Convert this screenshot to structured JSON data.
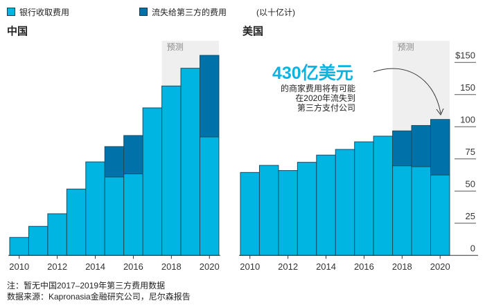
{
  "legend": {
    "bank": "银行收取费用",
    "lost": "流失给第三方的费用",
    "unit": "(以十亿计)"
  },
  "colors": {
    "bank": "#00b5e2",
    "lost": "#0072aa",
    "forecast_bg": "#efefef",
    "outline": "#1d4b5e"
  },
  "notes": [
    "注：暂无中国2017–2019年第三方费用数据",
    "数据来源：Kapronasia金融研究公司，尼尔森报告"
  ],
  "chart_data": [
    {
      "type": "bar",
      "stacked": true,
      "title": "中国",
      "forecast_label": "预测",
      "forecast_years": [
        2018,
        2019,
        2020
      ],
      "categories": [
        2010,
        2011,
        2012,
        2013,
        2014,
        2015,
        2016,
        2017,
        2018,
        2019,
        2020
      ],
      "x_tick_labels": [
        "2010",
        "2012",
        "2014",
        "2016",
        "2018",
        "2020"
      ],
      "series": [
        {
          "name": "银行收取费用",
          "values": [
            14,
            22.6,
            32.4,
            51.6,
            72.7,
            61,
            63.4,
            114.7,
            131.7,
            145.5,
            92.1
          ]
        },
        {
          "name": "流失给第三方的费用",
          "values": [
            0,
            0,
            0,
            0,
            0,
            23.6,
            29.8,
            0,
            0,
            0,
            63.4
          ]
        }
      ],
      "ylim": [
        0,
        160
      ]
    },
    {
      "type": "bar",
      "stacked": true,
      "title": "美国",
      "forecast_label": "预测",
      "forecast_years": [
        2018,
        2019,
        2020
      ],
      "categories": [
        2010,
        2011,
        2012,
        2013,
        2014,
        2015,
        2016,
        2017,
        2018,
        2019,
        2020
      ],
      "x_tick_labels": [
        "2010",
        "2012",
        "2014",
        "2016",
        "2018",
        "2020"
      ],
      "y_tick_labels": [
        "0",
        "25",
        "50",
        "75",
        "100",
        "150",
        "$150"
      ],
      "series": [
        {
          "name": "银行收取费用",
          "values": [
            64.5,
            70,
            66,
            72.4,
            78,
            82.4,
            88.3,
            92.7,
            69.7,
            69,
            62.5
          ]
        },
        {
          "name": "流失给第三方的费用",
          "values": [
            0,
            0,
            0,
            0,
            0,
            0,
            0,
            0,
            27.1,
            32,
            43.2
          ]
        }
      ],
      "ylim": [
        0,
        160
      ],
      "annotation": {
        "headline": "430亿美元",
        "lines": [
          "的商家费用将有可能",
          "在2020年流失到",
          "第三方支付公司"
        ]
      }
    }
  ]
}
